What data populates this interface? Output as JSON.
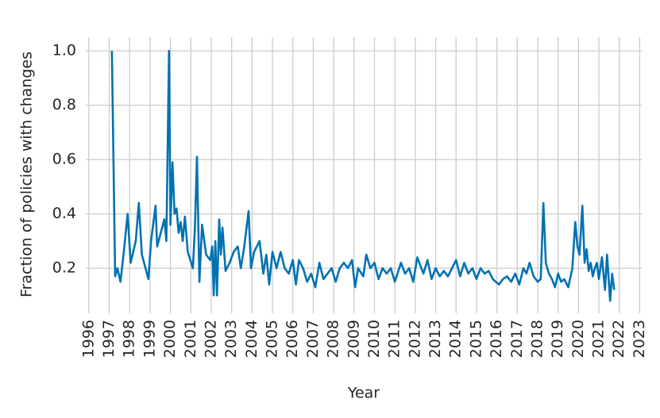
{
  "chart_data": {
    "type": "line",
    "x_label": "Year",
    "y_label": "Fraction of policies with changes",
    "xlim": [
      1995.85,
      2023.1
    ],
    "ylim": [
      0.034,
      1.05
    ],
    "xticks": [
      1996,
      1997,
      1998,
      1999,
      2000,
      2001,
      2002,
      2003,
      2004,
      2005,
      2006,
      2007,
      2008,
      2009,
      2010,
      2011,
      2012,
      2013,
      2014,
      2015,
      2016,
      2017,
      2018,
      2019,
      2020,
      2021,
      2022,
      2023
    ],
    "yticks": [
      0.2,
      0.4,
      0.6,
      0.8,
      {
        "value": 1,
        "label": "1.0"
      }
    ],
    "grid": true,
    "series": [
      {
        "color": "#0072b2",
        "x": [
          1997.13,
          1997.29,
          1997.4,
          1997.55,
          1997.7,
          1997.9,
          1998.05,
          1998.3,
          1998.45,
          1998.6,
          1998.92,
          1999.05,
          1999.27,
          1999.35,
          1999.7,
          1999.8,
          1999.93,
          2000.0,
          2000.1,
          2000.2,
          2000.3,
          2000.4,
          2000.5,
          2000.6,
          2000.71,
          2000.85,
          2001.1,
          2001.2,
          2001.3,
          2001.42,
          2001.55,
          2001.75,
          2001.95,
          2002.05,
          2002.12,
          2002.2,
          2002.28,
          2002.39,
          2002.47,
          2002.55,
          2002.7,
          2002.9,
          2003.1,
          2003.3,
          2003.45,
          2003.6,
          2003.83,
          2003.95,
          2004.1,
          2004.37,
          2004.55,
          2004.7,
          2004.84,
          2005.0,
          2005.2,
          2005.4,
          2005.6,
          2005.8,
          2006.0,
          2006.15,
          2006.3,
          2006.5,
          2006.7,
          2006.9,
          2007.1,
          2007.3,
          2007.5,
          2007.9,
          2008.1,
          2008.3,
          2008.5,
          2008.7,
          2008.9,
          2009.05,
          2009.2,
          2009.45,
          2009.6,
          2009.8,
          2010.0,
          2010.2,
          2010.4,
          2010.6,
          2010.8,
          2011.0,
          2011.3,
          2011.5,
          2011.7,
          2011.9,
          2012.1,
          2012.4,
          2012.6,
          2012.8,
          2013.0,
          2013.2,
          2013.4,
          2013.6,
          2013.8,
          2014.0,
          2014.2,
          2014.4,
          2014.6,
          2014.8,
          2015.0,
          2015.2,
          2015.4,
          2015.6,
          2015.8,
          2016.1,
          2016.3,
          2016.5,
          2016.7,
          2016.9,
          2017.1,
          2017.3,
          2017.45,
          2017.6,
          2017.8,
          2018.0,
          2018.15,
          2018.28,
          2018.4,
          2018.55,
          2018.7,
          2018.85,
          2019.0,
          2019.15,
          2019.3,
          2019.5,
          2019.7,
          2019.84,
          2019.95,
          2020.05,
          2020.19,
          2020.3,
          2020.4,
          2020.5,
          2020.6,
          2020.7,
          2020.8,
          2020.9,
          2021.0,
          2021.15,
          2021.3,
          2021.4,
          2021.55,
          2021.65,
          2021.75
        ],
        "values": [
          1.0,
          0.17,
          0.2,
          0.15,
          0.25,
          0.4,
          0.22,
          0.3,
          0.44,
          0.25,
          0.16,
          0.3,
          0.43,
          0.28,
          0.38,
          0.3,
          1.0,
          0.36,
          0.59,
          0.4,
          0.42,
          0.33,
          0.37,
          0.3,
          0.39,
          0.26,
          0.2,
          0.35,
          0.61,
          0.15,
          0.36,
          0.25,
          0.23,
          0.28,
          0.1,
          0.3,
          0.1,
          0.38,
          0.25,
          0.35,
          0.19,
          0.22,
          0.26,
          0.28,
          0.2,
          0.27,
          0.41,
          0.2,
          0.26,
          0.3,
          0.18,
          0.25,
          0.14,
          0.26,
          0.2,
          0.26,
          0.2,
          0.18,
          0.23,
          0.14,
          0.23,
          0.2,
          0.15,
          0.18,
          0.13,
          0.22,
          0.16,
          0.2,
          0.15,
          0.2,
          0.22,
          0.2,
          0.23,
          0.13,
          0.2,
          0.17,
          0.25,
          0.2,
          0.22,
          0.16,
          0.2,
          0.18,
          0.2,
          0.15,
          0.22,
          0.18,
          0.2,
          0.15,
          0.24,
          0.18,
          0.23,
          0.16,
          0.2,
          0.17,
          0.19,
          0.17,
          0.2,
          0.23,
          0.17,
          0.22,
          0.18,
          0.2,
          0.16,
          0.2,
          0.18,
          0.19,
          0.16,
          0.14,
          0.16,
          0.17,
          0.15,
          0.18,
          0.14,
          0.2,
          0.18,
          0.22,
          0.17,
          0.15,
          0.16,
          0.44,
          0.22,
          0.18,
          0.16,
          0.13,
          0.18,
          0.15,
          0.16,
          0.13,
          0.2,
          0.37,
          0.28,
          0.25,
          0.43,
          0.22,
          0.27,
          0.19,
          0.22,
          0.17,
          0.2,
          0.22,
          0.16,
          0.24,
          0.12,
          0.25,
          0.08,
          0.18,
          0.12
        ]
      }
    ]
  }
}
